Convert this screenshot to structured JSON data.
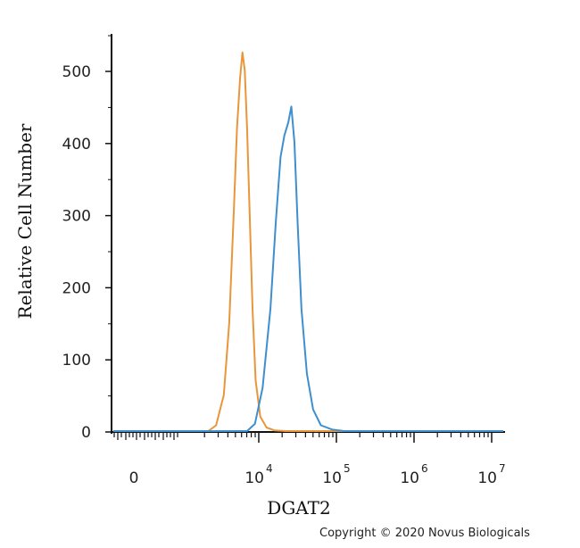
{
  "chart_data": {
    "type": "line",
    "title": "",
    "xlabel": "DGAT2",
    "ylabel": "Relative Cell Number",
    "x_scale": "log",
    "x_ticks": [
      {
        "label": "0",
        "decade": 1.5,
        "exp": ""
      },
      {
        "label": "10",
        "decade": 4,
        "exp": "4"
      },
      {
        "label": "10",
        "decade": 5,
        "exp": "5"
      },
      {
        "label": "10",
        "decade": 6,
        "exp": "6"
      },
      {
        "label": "10",
        "decade": 7,
        "exp": "7"
      }
    ],
    "y_ticks": [
      0,
      100,
      200,
      300,
      400,
      500
    ],
    "ylim": [
      0,
      550
    ],
    "xlim_decades": [
      1.3,
      7.2
    ],
    "grid": false,
    "series": [
      {
        "color": "#e8963c",
        "x_decade": [
          3.35,
          3.45,
          3.55,
          3.62,
          3.68,
          3.72,
          3.76,
          3.79,
          3.82,
          3.85,
          3.88,
          3.92,
          3.96,
          4.02,
          4.1,
          4.2,
          4.35
        ],
        "values": [
          0,
          8,
          50,
          150,
          310,
          420,
          490,
          525,
          500,
          420,
          310,
          170,
          70,
          20,
          5,
          1,
          0
        ]
      },
      {
        "color": "#3d8fd0",
        "x_decade": [
          3.85,
          3.95,
          4.05,
          4.15,
          4.22,
          4.28,
          4.33,
          4.38,
          4.42,
          4.46,
          4.5,
          4.55,
          4.62,
          4.7,
          4.8,
          4.95,
          5.1
        ],
        "values": [
          0,
          10,
          60,
          170,
          290,
          380,
          410,
          428,
          450,
          400,
          290,
          170,
          80,
          30,
          8,
          2,
          0
        ]
      }
    ]
  },
  "copyright": "Copyright © 2020 Novus Biologicals"
}
